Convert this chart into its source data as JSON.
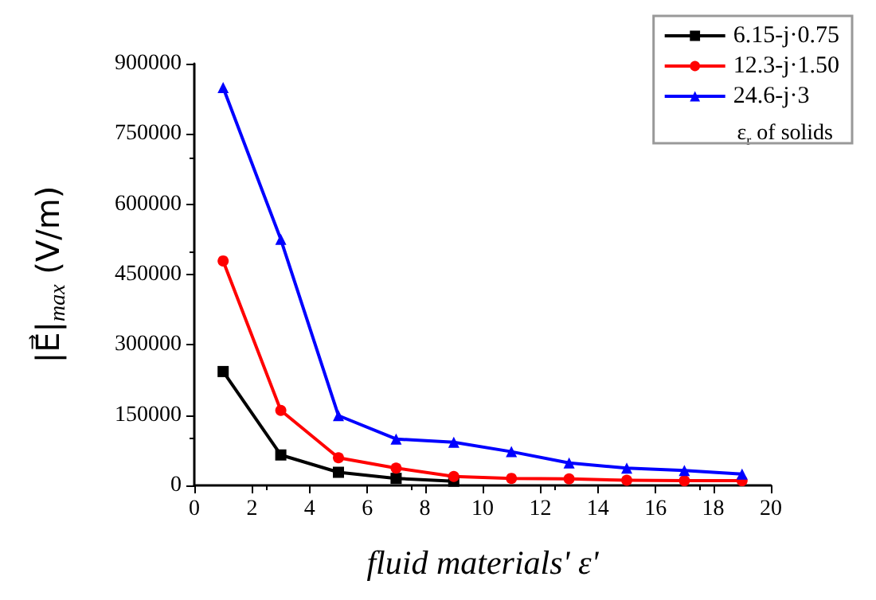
{
  "chart_data": {
    "type": "line",
    "xlabel": "fluid materials' ε'",
    "ylabel": "|E⃗|$_{max}$ (V/m)",
    "legend_title": "ε$_{r}$ of solids",
    "legend": "top right",
    "grid": false,
    "x": [
      1,
      3,
      5,
      7,
      9,
      11,
      13,
      15,
      17,
      19
    ],
    "xlim": [
      0,
      20
    ],
    "xticks": [
      0,
      2,
      4,
      6,
      8,
      10,
      12,
      14,
      16,
      18,
      20
    ],
    "ylim": [
      0,
      900000
    ],
    "yticks": [
      0,
      150000,
      300000,
      450000,
      600000,
      750000,
      900000
    ],
    "series": [
      {
        "name": "6.15-j·0.75",
        "color": "#000000",
        "marker": "square",
        "values": [
          243000,
          65000,
          28000,
          15000,
          9000,
          null,
          null,
          null,
          null,
          null
        ]
      },
      {
        "name": "12.3-j·1.50",
        "color": "#ff0000",
        "marker": "circle",
        "values": [
          479000,
          160000,
          59000,
          37000,
          19000,
          15000,
          14000,
          11000,
          10000,
          10000
        ]
      },
      {
        "name": "24.6-j·3",
        "color": "#0000ff",
        "marker": "triangle",
        "values": [
          849000,
          525000,
          149000,
          99000,
          92000,
          72000,
          48000,
          37000,
          32000,
          24000
        ]
      }
    ],
    "line_style": "solid"
  }
}
